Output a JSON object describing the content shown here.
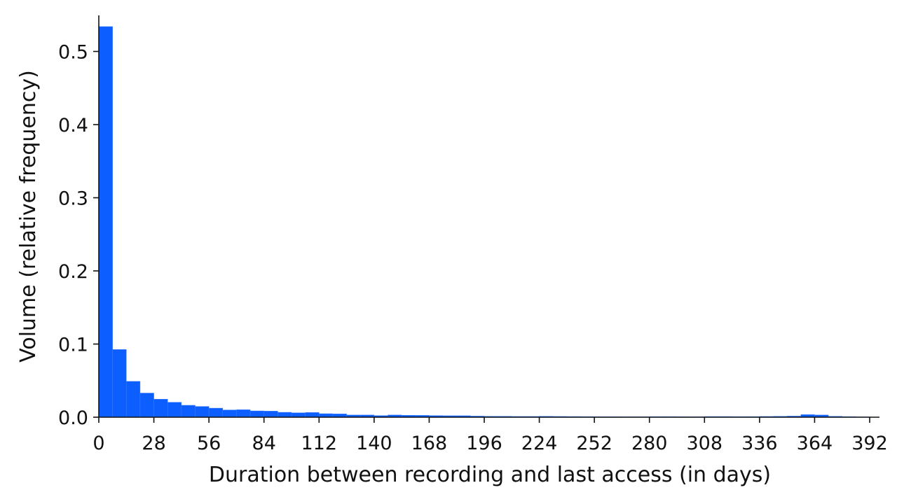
{
  "chart_data": {
    "type": "bar",
    "title": "",
    "xlabel": "Duration between recording and last access (in days)",
    "ylabel": "Volume (relative frequency)",
    "bin_width": 7,
    "xlim": [
      0,
      399
    ],
    "ylim": [
      0,
      0.55
    ],
    "xticks": [
      0,
      28,
      56,
      84,
      112,
      140,
      168,
      196,
      224,
      252,
      280,
      308,
      336,
      364,
      392
    ],
    "yticks": [
      "0.0",
      "0.1",
      "0.2",
      "0.3",
      "0.4",
      "0.5"
    ],
    "ytick_values": [
      0,
      0.1,
      0.2,
      0.3,
      0.4,
      0.5
    ],
    "grid": false,
    "bar_color": "#0d5eff",
    "bin_starts": [
      0,
      7,
      14,
      21,
      28,
      35,
      42,
      49,
      56,
      63,
      70,
      77,
      84,
      91,
      98,
      105,
      112,
      119,
      126,
      133,
      140,
      147,
      154,
      161,
      168,
      175,
      182,
      189,
      196,
      203,
      210,
      217,
      224,
      231,
      238,
      245,
      252,
      259,
      266,
      273,
      280,
      287,
      294,
      301,
      308,
      315,
      322,
      329,
      336,
      343,
      350,
      357,
      364,
      371,
      378,
      385
    ],
    "values": [
      0.534,
      0.0925,
      0.049,
      0.033,
      0.0246,
      0.0204,
      0.0163,
      0.0147,
      0.0124,
      0.0099,
      0.0102,
      0.0086,
      0.0083,
      0.0067,
      0.006,
      0.0064,
      0.0048,
      0.0045,
      0.003,
      0.003,
      0.0022,
      0.003,
      0.0026,
      0.0025,
      0.0022,
      0.002,
      0.002,
      0.0015,
      0.0012,
      0.0012,
      0.001,
      0.001,
      0.0012,
      0.001,
      0.0009,
      0.0008,
      0.0007,
      0.0007,
      0.0006,
      0.0006,
      0.0008,
      0.0008,
      0.0007,
      0.0006,
      0.0009,
      0.0009,
      0.0008,
      0.0008,
      0.001,
      0.0012,
      0.0015,
      0.0035,
      0.003,
      0.0012,
      0.0008,
      0.0005
    ]
  }
}
